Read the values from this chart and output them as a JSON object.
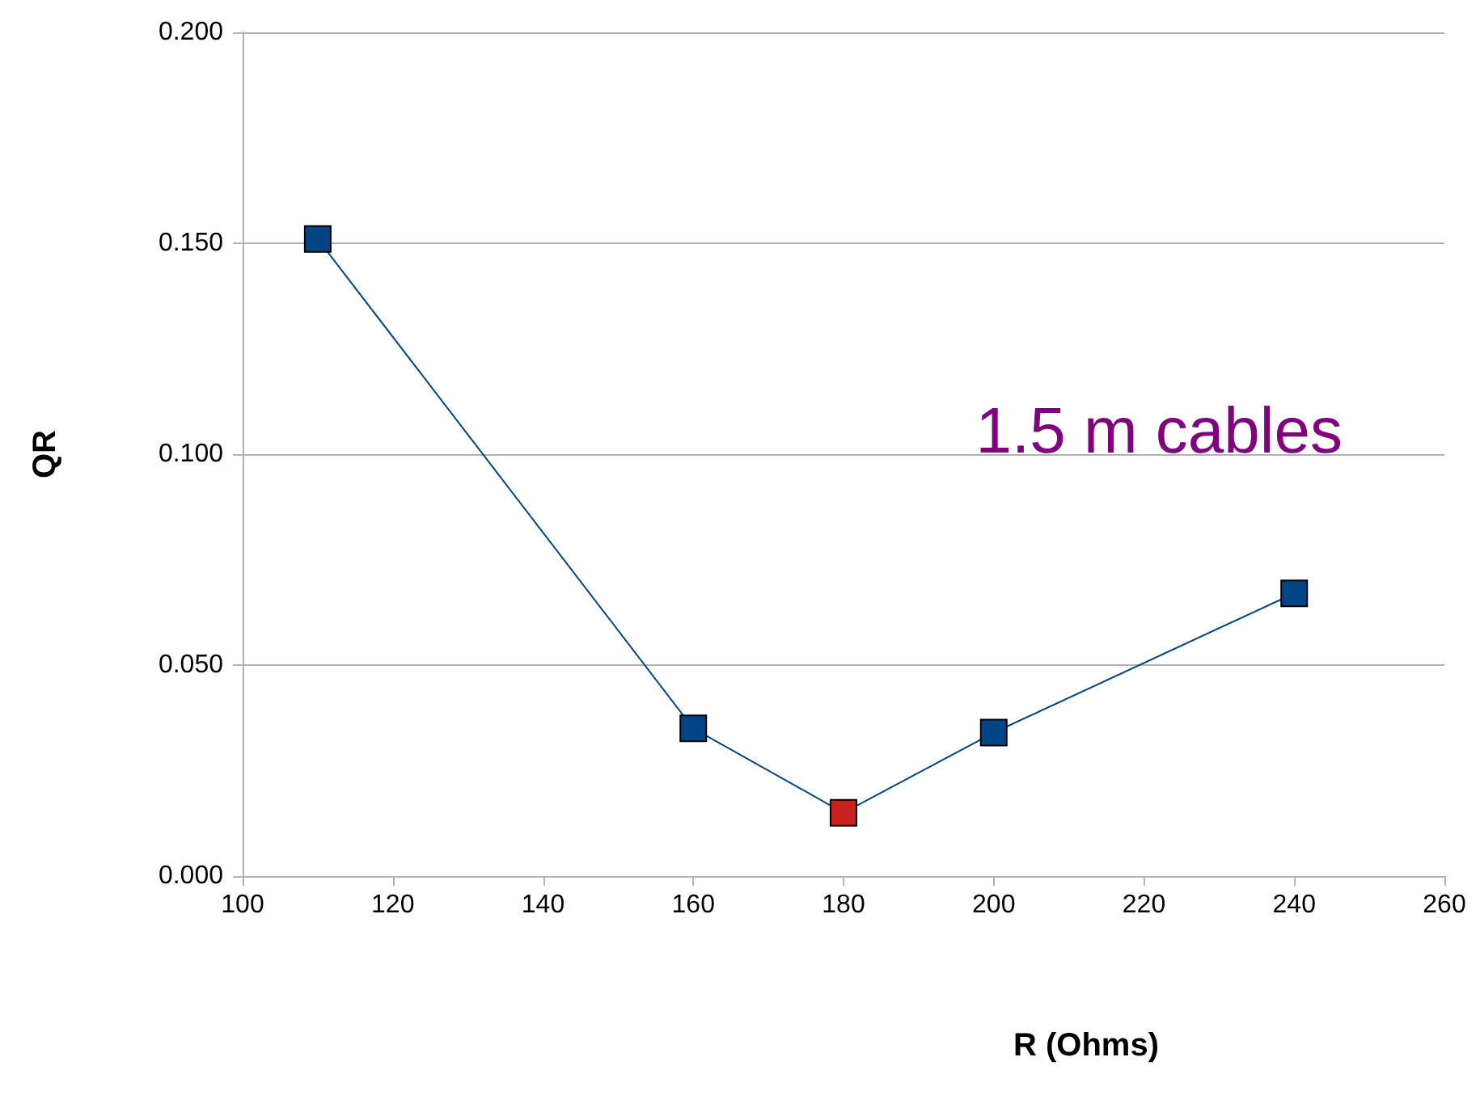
{
  "chart_data": {
    "type": "line",
    "xlabel": "R (Ohms)",
    "ylabel": "QR",
    "x": [
      110,
      160,
      180,
      200,
      240
    ],
    "series": [
      {
        "color": "#004586",
        "colors": [
          "#004586",
          "#004586",
          "#c9211e",
          "#004586",
          "#004586"
        ],
        "values": [
          0.151,
          0.035,
          0.015,
          0.034,
          0.067
        ]
      }
    ],
    "xlim": [
      100,
      260
    ],
    "xticks": [
      100,
      120,
      140,
      160,
      180,
      200,
      220,
      240,
      260
    ],
    "ylim": [
      0,
      0.2
    ],
    "yticks": [
      {
        "value": 0,
        "label": "0.000"
      },
      {
        "value": 0.05,
        "label": "0.050"
      },
      {
        "value": 0.1,
        "label": "0.100"
      },
      {
        "value": 0.15,
        "label": "0.150"
      },
      {
        "value": 0.2,
        "label": "0.200"
      }
    ],
    "annotations": [
      "1.5 m cables"
    ],
    "grid": "y",
    "marker": "square",
    "line_style": "solid"
  }
}
